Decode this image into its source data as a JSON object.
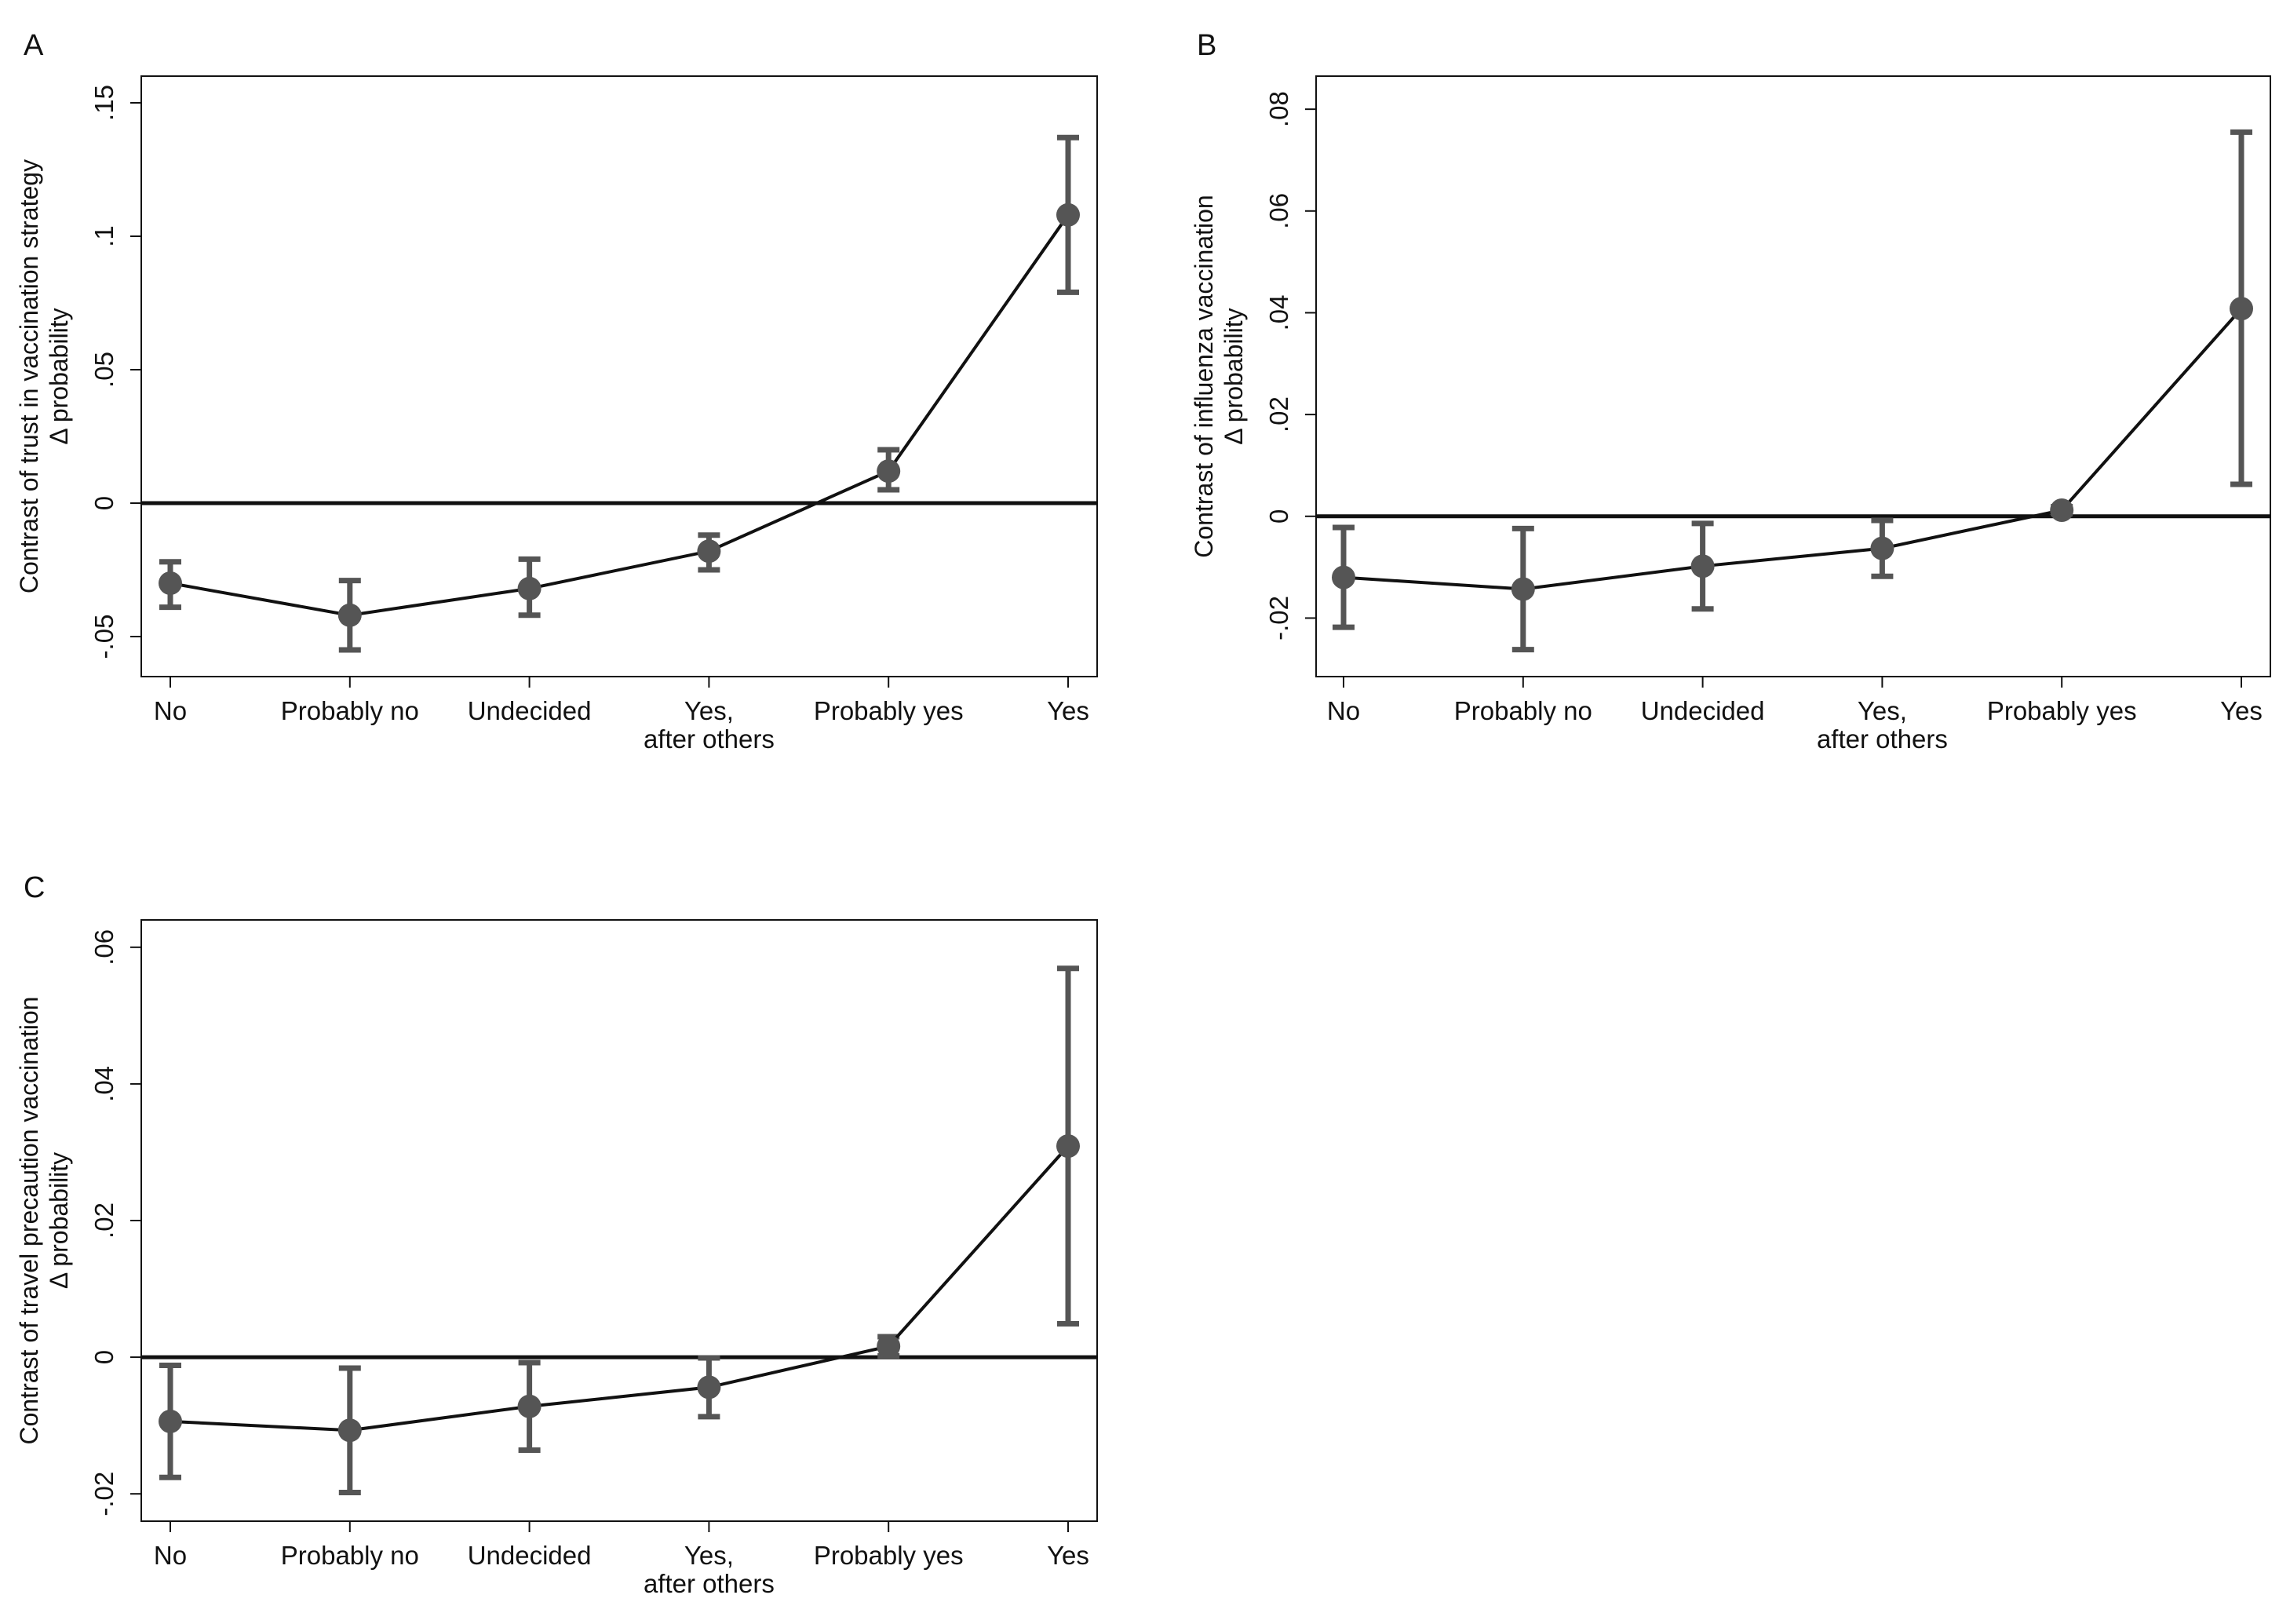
{
  "style": {
    "marker_color": "#555555",
    "line_color": "#111111",
    "frame_color": "#111111"
  },
  "chart_data": [
    {
      "panel": "A",
      "type": "line",
      "title": "",
      "categories": [
        "No",
        "Probably no",
        "Undecided",
        "Yes,\nafter others",
        "Probably yes",
        "Yes"
      ],
      "values": [
        -0.03,
        -0.042,
        -0.032,
        -0.018,
        0.012,
        0.108
      ],
      "ci_low": [
        -0.039,
        -0.055,
        -0.042,
        -0.025,
        0.005,
        0.079
      ],
      "ci_high": [
        -0.022,
        -0.029,
        -0.021,
        -0.012,
        0.02,
        0.137
      ],
      "ylabel_line1": "Contrast of trust in vaccination strategy",
      "ylabel_line2": "Δ probability",
      "xlabel": "",
      "ylim": [
        -0.065,
        0.16
      ],
      "yticks": [
        -0.05,
        0,
        0.05,
        0.1,
        0.15
      ],
      "ytick_labels": [
        "-.05",
        "0",
        ".05",
        ".1",
        ".15"
      ],
      "reference_line": 0
    },
    {
      "panel": "B",
      "type": "line",
      "title": "",
      "categories": [
        "No",
        "Probably no",
        "Undecided",
        "Yes,\nafter others",
        "Probably yes",
        "Yes"
      ],
      "values": [
        -0.012,
        -0.0143,
        -0.0098,
        -0.0063,
        0.0012,
        0.0408
      ],
      "ci_low": [
        -0.0218,
        -0.0262,
        -0.0182,
        -0.0118,
        0.0005,
        0.0063
      ],
      "ci_high": [
        -0.0022,
        -0.0024,
        -0.0014,
        -0.0008,
        0.0019,
        0.0755
      ],
      "ylabel_line1": "Contrast of influenza vaccination",
      "ylabel_line2": "Δ probability",
      "xlabel": "",
      "ylim": [
        -0.0315,
        0.0865
      ],
      "yticks": [
        -0.02,
        0,
        0.02,
        0.04,
        0.06,
        0.08
      ],
      "ytick_labels": [
        "-.02",
        "0",
        ".02",
        ".04",
        ".06",
        ".08"
      ],
      "reference_line": 0
    },
    {
      "panel": "C",
      "type": "line",
      "title": "",
      "categories": [
        "No",
        "Probably no",
        "Undecided",
        "Yes,\nafter others",
        "Probably yes",
        "Yes"
      ],
      "values": [
        -0.0094,
        -0.0107,
        -0.0072,
        -0.0044,
        0.0016,
        0.0309
      ],
      "ci_low": [
        -0.0176,
        -0.0198,
        -0.0136,
        -0.0087,
        0.0002,
        0.0049
      ],
      "ci_high": [
        -0.0012,
        -0.0016,
        -0.0008,
        -0.0001,
        0.003,
        0.0569
      ],
      "ylabel_line1": "Contrast of travel precaution vaccination",
      "ylabel_line2": "Δ probability",
      "xlabel": "",
      "ylim": [
        -0.024,
        0.064
      ],
      "yticks": [
        -0.02,
        0,
        0.02,
        0.04,
        0.06
      ],
      "ytick_labels": [
        "-.02",
        "0",
        ".02",
        ".04",
        ".06"
      ],
      "reference_line": 0
    }
  ]
}
